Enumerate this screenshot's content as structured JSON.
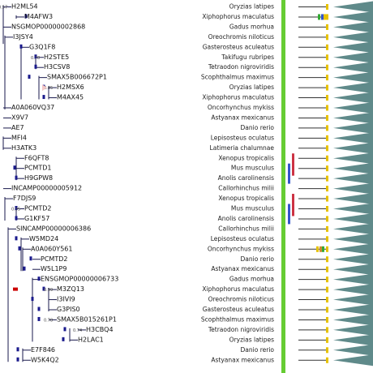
{
  "tree_rows": [
    {
      "gene": "H2ML54",
      "species": "Oryzias latipes",
      "support": "0.57"
    },
    {
      "gene": "M4AFW3",
      "species": "Xiphophorus maculatus",
      "support": ""
    },
    {
      "gene": "NSGMOP00000002868",
      "species": "Gadus morhua",
      "support": ""
    },
    {
      "gene": "I3JSY4",
      "species": "Oreochromis niloticus",
      "support": ""
    },
    {
      "gene": "G3Q1F8",
      "species": "Gasterosteus aculeatus",
      "support": ""
    },
    {
      "gene": "H2STE5",
      "species": "Takifugu rubripes",
      "support": "0.78"
    },
    {
      "gene": "H3CSV8",
      "species": "Tetraodon nigroviridis",
      "support": ""
    },
    {
      "gene": "SMAX5B006672P1",
      "species": "Scophthalmus maximus",
      "support": ""
    },
    {
      "gene": "H2MSX6",
      "species": "Oryzias latipes",
      "support": "0.45"
    },
    {
      "gene": "M4AX45",
      "species": "Xiphophorus maculatus",
      "support": ""
    },
    {
      "gene": "A0A060VQ37",
      "species": "Oncorhynchus mykiss",
      "support": ""
    },
    {
      "gene": "X9V7",
      "species": "Astyanax mexicanus",
      "support": ""
    },
    {
      "gene": "AE7",
      "species": "Danio rerio",
      "support": ""
    },
    {
      "gene": "MFI4",
      "species": "Lepisosteus oculatus",
      "support": ""
    },
    {
      "gene": "H3ATK3",
      "species": "Latimeria chalumnae",
      "support": ""
    },
    {
      "gene": "F6QFT8",
      "species": "Xenopus tropicalis",
      "support": ""
    },
    {
      "gene": "PCMTD1",
      "species": "Mus musculus",
      "support": ""
    },
    {
      "gene": "H9GPW8",
      "species": "Anolis carolinensis",
      "support": ""
    },
    {
      "gene": "INCAMP00000005912",
      "species": "Callorhinchus milii",
      "support": ""
    },
    {
      "gene": "F7DJS9",
      "species": "Xenopus tropicalis",
      "support": ""
    },
    {
      "gene": "PCMTD2",
      "species": "Mus musculus",
      "support": "0.95"
    },
    {
      "gene": "G1KF57",
      "species": "Anolis carolinensis",
      "support": ""
    },
    {
      "gene": "SINCAMP00000006386",
      "species": "Callorhinchus milii",
      "support": ""
    },
    {
      "gene": "W5MD24",
      "species": "Lepisosteus oculatus",
      "support": ""
    },
    {
      "gene": "A0A060Y561",
      "species": "Oncorhynchus mykiss",
      "support": ""
    },
    {
      "gene": "PCMTD2",
      "species": "Danio rerio",
      "support": ""
    },
    {
      "gene": "W5L1P9",
      "species": "Astyanax mexicanus",
      "support": ""
    },
    {
      "gene": "ENSGMOP00000006733",
      "species": "Gadus morhua",
      "support": ""
    },
    {
      "gene": "M3ZQ13",
      "species": "Xiphophorus maculatus",
      "support": "0.99"
    },
    {
      "gene": "I3IVI9",
      "species": "Oreochromis niloticus",
      "support": ""
    },
    {
      "gene": "G3PIS0",
      "species": "Gasterosteus aculeatus",
      "support": ""
    },
    {
      "gene": "SMAX5B015261P1",
      "species": "Scophthalmus maximus",
      "support": "0.78"
    },
    {
      "gene": "H3CBQ4",
      "species": "Tetraodon nigroviridis",
      "support": "0.74"
    },
    {
      "gene": "H2LAC1",
      "species": "Oryzias latipes",
      "support": ""
    },
    {
      "gene": "E7F846",
      "species": "Danio rerio",
      "support": ""
    },
    {
      "gene": "W5K4Q2",
      "species": "Astyanax mexicanus",
      "support": ""
    }
  ],
  "colors": {
    "branch": "#1a1a4e",
    "node_blue": "#1a1a8c",
    "duplication_red": "#cc0000",
    "species_bar_green": "#66cc33",
    "triangle_teal": "#5f8a8a",
    "domain_yellow": "#e6c200",
    "domain_green": "#33aa33",
    "domain_blue": "#3355cc",
    "highlight_blue": "#3355cc",
    "highlight_red": "#cc3344",
    "highlight_pink": "#f4c8c8"
  }
}
